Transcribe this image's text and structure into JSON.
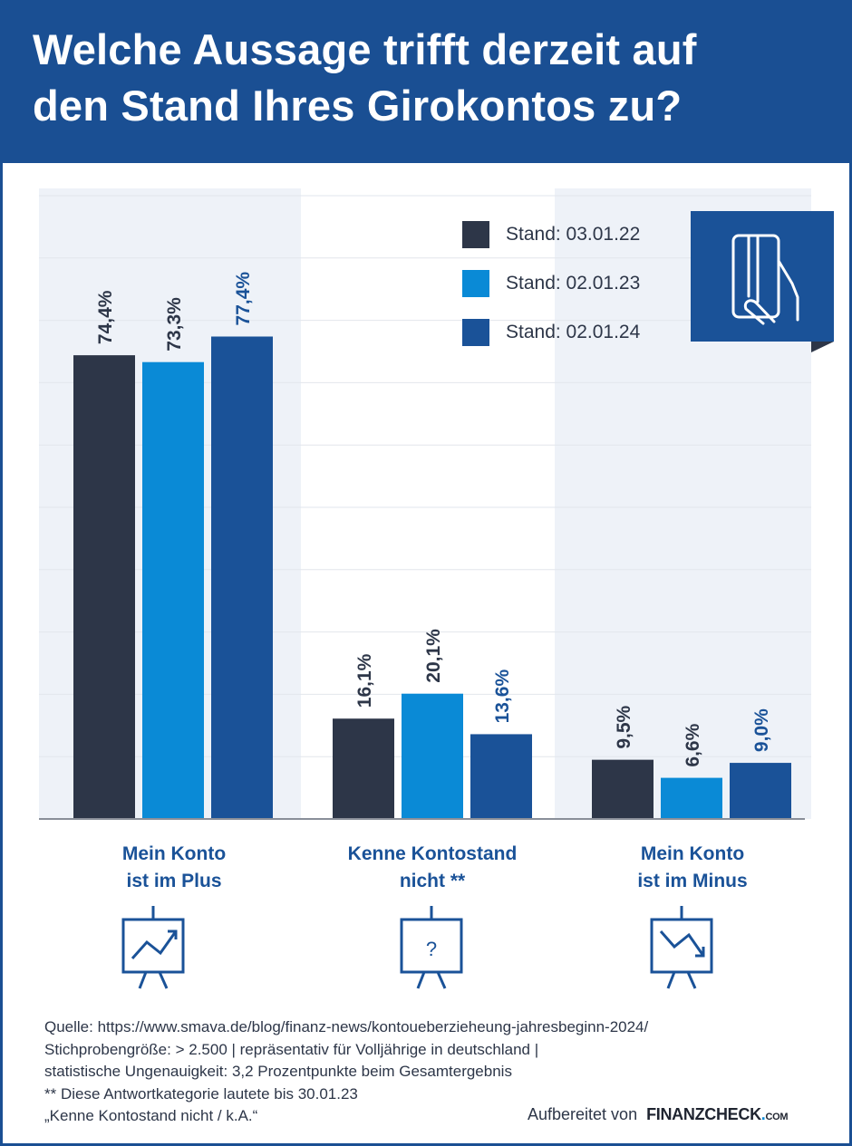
{
  "title_lines": [
    "Welche Aussage trifft derzeit auf",
    "den Stand Ihres Girokontos zu?"
  ],
  "colors": {
    "series1": "#2d3648",
    "series2": "#0a8ad6",
    "series3": "#1a5298",
    "header": "#1a4f93"
  },
  "chart_data": {
    "type": "bar",
    "title": "Welche Aussage trifft derzeit auf den Stand Ihres Girokontos zu?",
    "categories": [
      "Mein Konto ist im Plus",
      "Kenne Kontostand nicht **",
      "Mein Konto ist im Minus"
    ],
    "category_lines": [
      [
        "Mein Konto",
        "ist im Plus"
      ],
      [
        "Kenne Kontostand",
        "nicht **"
      ],
      [
        "Mein Konto",
        "ist im Minus"
      ]
    ],
    "series": [
      {
        "name": "Stand: 03.01.22",
        "values": [
          74.4,
          16.1,
          9.5
        ],
        "labels": [
          "74,4%",
          "16,1%",
          "9,5%"
        ]
      },
      {
        "name": "Stand: 02.01.23",
        "values": [
          73.3,
          20.1,
          6.6
        ],
        "labels": [
          "73,3%",
          "20,1%",
          "6,6%"
        ]
      },
      {
        "name": "Stand: 02.01.24",
        "values": [
          77.4,
          13.6,
          9.0
        ],
        "labels": [
          "77,4%",
          "13,6%",
          "9,0%"
        ]
      }
    ],
    "ylim": [
      0,
      100
    ],
    "grid": true,
    "legend": "top-right",
    "xlabel": "",
    "ylabel": ""
  },
  "icons": [
    "chart-up-board-icon",
    "question-board-icon",
    "chart-down-board-icon",
    "card-in-hand-icon"
  ],
  "footer": {
    "lines": [
      "Quelle: https://www.smava.de/blog/finanz-news/kontoueberzieheung-jahresbeginn-2024/",
      "Stichprobengröße: > 2.500 | repräsentativ für Volljährige in deutschland |",
      "statistische Ungenauigkeit: 3,2 Prozentpunkte beim Gesamtergebnis",
      "** Diese Antwortkategorie lautete bis 30.01.23",
      "„Kenne Kontostand nicht / k.A.“"
    ],
    "credit": "Aufbereitet von",
    "logo_main": "FINANZCHECK",
    "logo_dot": ".",
    "logo_com": "COM"
  }
}
